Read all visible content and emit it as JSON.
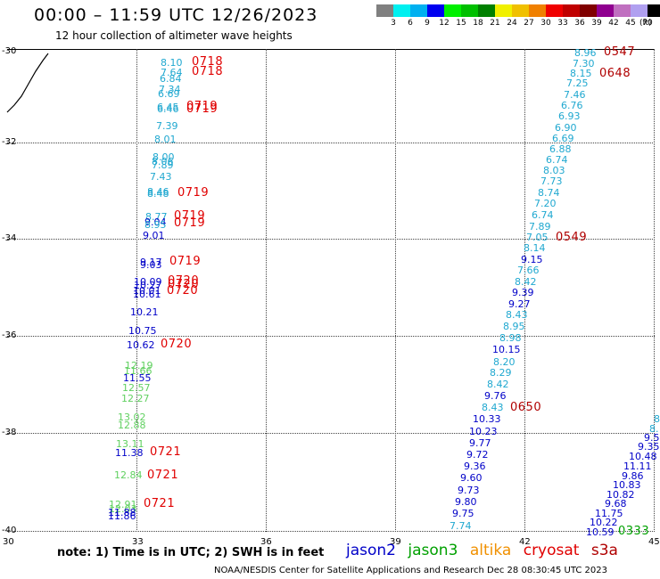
{
  "header": {
    "title": "00:00 – 11:59 UTC 12/26/2023",
    "subtitle": "12 hour collection of altimeter wave heights"
  },
  "colorbar": {
    "colors": [
      "#808080",
      "#00f0f0",
      "#00b0f0",
      "#0000f0",
      "#00f000",
      "#00c000",
      "#008000",
      "#f0f000",
      "#f0c000",
      "#f08000",
      "#f00000",
      "#c00000",
      "#800000",
      "#900090",
      "#c070c0",
      "#b0a0f0",
      "#000000"
    ],
    "ticks": [
      "3",
      "6",
      "9",
      "12",
      "15",
      "18",
      "21",
      "24",
      "27",
      "30",
      "33",
      "36",
      "39",
      "42",
      "45",
      "70"
    ],
    "unit": "(ft)"
  },
  "axes": {
    "lon_labels": [
      "30",
      "33",
      "36",
      "39",
      "42",
      "45"
    ],
    "lat_labels": [
      "-30",
      "-32",
      "-34",
      "-36",
      "-38",
      "-40"
    ]
  },
  "satellite_colors": {
    "jason2": "#0000c8",
    "jason3": "#00a000",
    "altika": "#f09000",
    "cryosat": "#e00000",
    "s3a": "#b00000",
    "cyan": "#20a8d0",
    "lightgreen": "#60d060"
  },
  "wave_values": [
    {
      "t": "8.10",
      "c": "cyan"
    },
    {
      "t": "7.64",
      "c": "cyan"
    },
    {
      "t": "6.84",
      "c": "cyan"
    },
    {
      "t": "7.34",
      "c": "cyan"
    },
    {
      "t": "6.69",
      "c": "cyan"
    },
    {
      "t": "6.45",
      "c": "cyan"
    },
    {
      "t": "6.46",
      "c": "cyan"
    },
    {
      "t": "7.39",
      "c": "cyan"
    },
    {
      "t": "8.01",
      "c": "cyan"
    },
    {
      "t": "8.00",
      "c": "cyan"
    },
    {
      "t": "8.06",
      "c": "cyan"
    },
    {
      "t": "7.89",
      "c": "cyan"
    },
    {
      "t": "7.43",
      "c": "cyan"
    },
    {
      "t": "8.46",
      "c": "cyan"
    },
    {
      "t": "8.48",
      "c": "cyan"
    },
    {
      "t": "8.77",
      "c": "cyan"
    },
    {
      "t": "9.04",
      "c": "jason2"
    },
    {
      "t": "8.95",
      "c": "cyan"
    },
    {
      "t": "9.01",
      "c": "jason2"
    },
    {
      "t": "9.17",
      "c": "jason2"
    },
    {
      "t": "9.03",
      "c": "jason2"
    },
    {
      "t": "10.09",
      "c": "jason2"
    },
    {
      "t": "10.27",
      "c": "jason2"
    },
    {
      "t": "10.01",
      "c": "jason2"
    },
    {
      "t": "10.61",
      "c": "jason2"
    },
    {
      "t": "10.21",
      "c": "jason2"
    },
    {
      "t": "10.75",
      "c": "jason2"
    },
    {
      "t": "10.62",
      "c": "jason2"
    },
    {
      "t": "12.19",
      "c": "lightgreen"
    },
    {
      "t": "11.66",
      "c": "lightgreen"
    },
    {
      "t": "11.55",
      "c": "jason2"
    },
    {
      "t": "12.57",
      "c": "lightgreen"
    },
    {
      "t": "12.27",
      "c": "lightgreen"
    },
    {
      "t": "13.02",
      "c": "lightgreen"
    },
    {
      "t": "12.88",
      "c": "lightgreen"
    },
    {
      "t": "13.11",
      "c": "lightgreen"
    },
    {
      "t": "11.38",
      "c": "jason2"
    },
    {
      "t": "12.84",
      "c": "lightgreen"
    },
    {
      "t": "12.91",
      "c": "lightgreen"
    },
    {
      "t": "12.03",
      "c": "lightgreen"
    },
    {
      "t": "11.88",
      "c": "jason2"
    },
    {
      "t": "11.86",
      "c": "jason2"
    },
    {
      "t": "8.96",
      "c": "cyan"
    },
    {
      "t": "7.30",
      "c": "cyan"
    },
    {
      "t": "8.15",
      "c": "cyan"
    },
    {
      "t": "7.25",
      "c": "cyan"
    },
    {
      "t": "7.46",
      "c": "cyan"
    },
    {
      "t": "6.76",
      "c": "cyan"
    },
    {
      "t": "6.93",
      "c": "cyan"
    },
    {
      "t": "6.90",
      "c": "cyan"
    },
    {
      "t": "6.69",
      "c": "cyan"
    },
    {
      "t": "6.88",
      "c": "cyan"
    },
    {
      "t": "6.74",
      "c": "cyan"
    },
    {
      "t": "8.03",
      "c": "cyan"
    },
    {
      "t": "7.73",
      "c": "cyan"
    },
    {
      "t": "8.74",
      "c": "cyan"
    },
    {
      "t": "7.20",
      "c": "cyan"
    },
    {
      "t": "6.74",
      "c": "cyan"
    },
    {
      "t": "7.89",
      "c": "cyan"
    },
    {
      "t": "7.05",
      "c": "cyan"
    },
    {
      "t": "8.14",
      "c": "cyan"
    },
    {
      "t": "9.15",
      "c": "jason2"
    },
    {
      "t": "7.66",
      "c": "cyan"
    },
    {
      "t": "8.42",
      "c": "cyan"
    },
    {
      "t": "9.39",
      "c": "jason2"
    },
    {
      "t": "9.27",
      "c": "jason2"
    },
    {
      "t": "8.43",
      "c": "cyan"
    },
    {
      "t": "8.95",
      "c": "cyan"
    },
    {
      "t": "8.98",
      "c": "cyan"
    },
    {
      "t": "10.15",
      "c": "jason2"
    },
    {
      "t": "8.20",
      "c": "cyan"
    },
    {
      "t": "8.29",
      "c": "cyan"
    },
    {
      "t": "8.42",
      "c": "cyan"
    },
    {
      "t": "9.76",
      "c": "jason2"
    },
    {
      "t": "8.43",
      "c": "cyan"
    },
    {
      "t": "10.33",
      "c": "jason2"
    },
    {
      "t": "10.23",
      "c": "jason2"
    },
    {
      "t": "9.77",
      "c": "jason2"
    },
    {
      "t": "9.72",
      "c": "jason2"
    },
    {
      "t": "9.36",
      "c": "jason2"
    },
    {
      "t": "9.60",
      "c": "jason2"
    },
    {
      "t": "9.73",
      "c": "jason2"
    },
    {
      "t": "9.80",
      "c": "jason2"
    },
    {
      "t": "9.75",
      "c": "jason2"
    },
    {
      "t": "7.74",
      "c": "cyan"
    },
    {
      "t": "8",
      "c": "cyan"
    },
    {
      "t": "8.",
      "c": "cyan"
    },
    {
      "t": "9.5",
      "c": "jason2"
    },
    {
      "t": "9.35",
      "c": "jason2"
    },
    {
      "t": "10.48",
      "c": "jason2"
    },
    {
      "t": "11.11",
      "c": "jason2"
    },
    {
      "t": "9.86",
      "c": "jason2"
    },
    {
      "t": "10.83",
      "c": "jason2"
    },
    {
      "t": "10.82",
      "c": "jason2"
    },
    {
      "t": "9.68",
      "c": "jason2"
    },
    {
      "t": "11.75",
      "c": "jason2"
    },
    {
      "t": "10.22",
      "c": "jason2"
    },
    {
      "t": "10.59",
      "c": "jason2"
    }
  ],
  "time_labels": [
    {
      "t": "0718",
      "c": "cryosat"
    },
    {
      "t": "0718",
      "c": "cryosat"
    },
    {
      "t": "0719",
      "c": "cryosat"
    },
    {
      "t": "0719",
      "c": "cryosat"
    },
    {
      "t": "0719",
      "c": "cryosat"
    },
    {
      "t": "0719",
      "c": "cryosat"
    },
    {
      "t": "0719",
      "c": "cryosat"
    },
    {
      "t": "0719",
      "c": "cryosat"
    },
    {
      "t": "0720",
      "c": "cryosat"
    },
    {
      "t": "0720",
      "c": "cryosat"
    },
    {
      "t": "0720",
      "c": "cryosat"
    },
    {
      "t": "0720",
      "c": "cryosat"
    },
    {
      "t": "0721",
      "c": "cryosat"
    },
    {
      "t": "0721",
      "c": "cryosat"
    },
    {
      "t": "0721",
      "c": "cryosat"
    },
    {
      "t": "0547",
      "c": "s3a"
    },
    {
      "t": "0648",
      "c": "s3a"
    },
    {
      "t": "0549",
      "c": "s3a"
    },
    {
      "t": "0650",
      "c": "s3a"
    },
    {
      "t": "0333",
      "c": "jason3"
    }
  ],
  "footer": {
    "note": "note: 1) Time is in UTC; 2) SWH is in feet",
    "legend": [
      {
        "label": "jason2",
        "c": "jason2"
      },
      {
        "label": "jason3",
        "c": "jason3"
      },
      {
        "label": "altika",
        "c": "altika"
      },
      {
        "label": "cryosat",
        "c": "cryosat"
      },
      {
        "label": "s3a",
        "c": "s3a"
      }
    ],
    "credit": "NOAA/NESDIS Center for Satellite Applications and Research   Dec 28 08:30:45 UTC 2023"
  }
}
